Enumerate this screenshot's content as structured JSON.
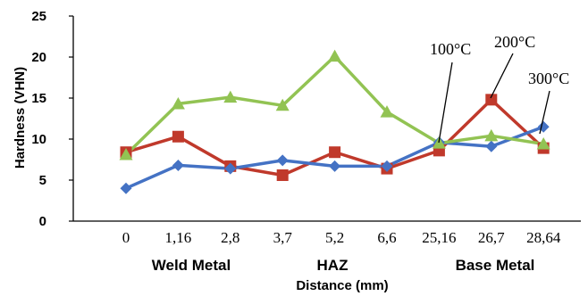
{
  "chart_data": {
    "type": "line",
    "categories": [
      "0",
      "1,16",
      "2,8",
      "3,7",
      "5,2",
      "6,6",
      "25,16",
      "26,7",
      "28,64"
    ],
    "ylabel": "Hardness (VHN)",
    "xlabel": "Distance (mm)",
    "ylim": [
      0,
      25
    ],
    "yticks": [
      0,
      5,
      10,
      15,
      20,
      25
    ],
    "grid": false,
    "regions": [
      "Weld Metal",
      "HAZ",
      "Base Metal"
    ],
    "series": [
      {
        "name": "100°C",
        "color": "#4472c4",
        "marker": "diamond",
        "values": [
          4.0,
          6.8,
          6.4,
          7.4,
          6.7,
          6.7,
          9.6,
          9.1,
          11.5
        ]
      },
      {
        "name": "200°C",
        "color": "#c0392b",
        "marker": "square",
        "values": [
          8.4,
          10.3,
          6.7,
          5.6,
          8.4,
          6.4,
          8.6,
          14.8,
          8.9
        ]
      },
      {
        "name": "300°C",
        "color": "#92c353",
        "marker": "triangle",
        "values": [
          8.1,
          14.3,
          15.1,
          14.1,
          20.1,
          13.3,
          9.5,
          10.4,
          9.4
        ]
      }
    ],
    "annotations": [
      "100°C",
      "200°C",
      "300°C"
    ]
  }
}
